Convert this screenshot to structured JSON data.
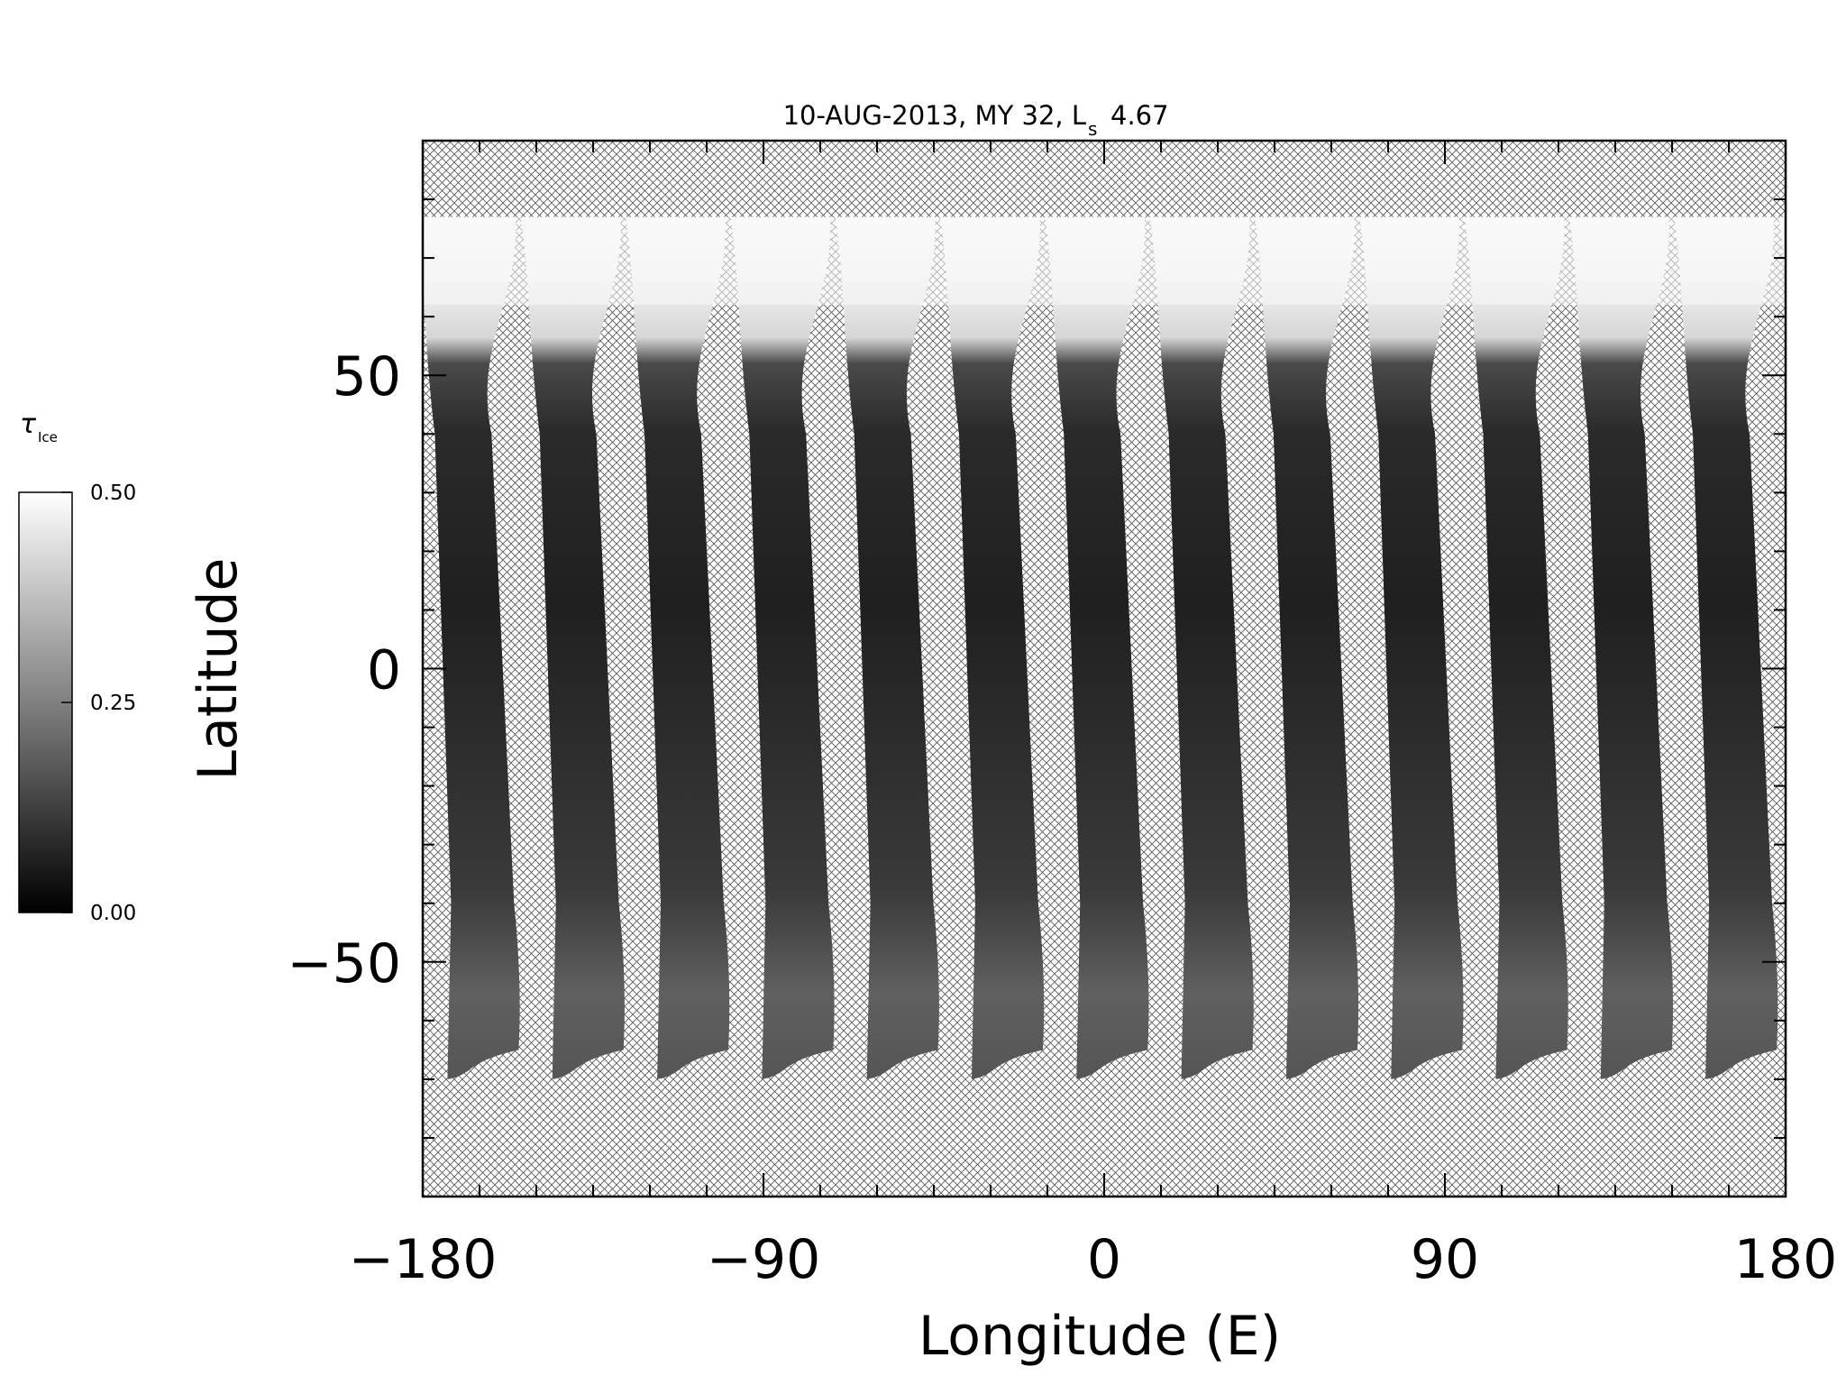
{
  "chart_data": {
    "type": "heatmap",
    "title": "10-AUG-2013, MY 32,  L",
    "title_sub": "s",
    "title_value": "4.67",
    "xlabel": "Longitude (E)",
    "ylabel": "Latitude",
    "xlim": [
      -180,
      180
    ],
    "ylim": [
      -90,
      90
    ],
    "xticks": [
      -180,
      -90,
      0,
      90,
      180
    ],
    "xtick_labels": [
      "−180",
      "−90",
      "0",
      "90",
      "180"
    ],
    "yticks": [
      -50,
      0,
      50
    ],
    "ytick_labels": [
      "−50",
      "0",
      "50"
    ],
    "colorbar": {
      "label": "τ",
      "label_sub": "Ice",
      "min": 0.0,
      "max": 0.5,
      "ticks": [
        0.0,
        0.25,
        0.5
      ],
      "tick_labels": [
        "0.00",
        "0.25",
        "0.50"
      ],
      "colormap": "grayscale"
    },
    "swaths": {
      "count": 13,
      "north_cap_lat": 77,
      "bright_cap_edge_lat": 62,
      "south_end_lat": -70,
      "no_data_fill": "crosshatch"
    }
  }
}
